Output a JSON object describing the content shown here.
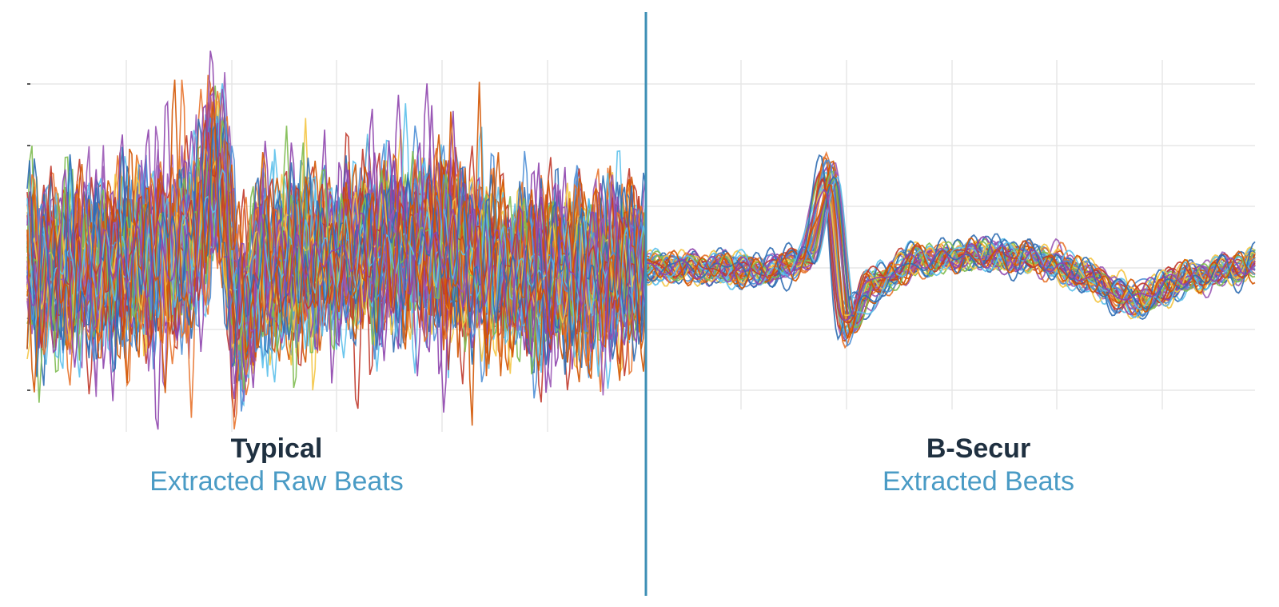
{
  "colors": {
    "divider": "#3d8fb5",
    "grid": "#e7e7e7",
    "title_text": "#1f3040",
    "subtitle_text": "#4a9bc5",
    "series_palette": [
      "#e8732c",
      "#4f8fd6",
      "#9b59b6",
      "#f4c542",
      "#7dbb4f",
      "#c0392b",
      "#5bc0eb",
      "#2f6db3",
      "#d35400",
      "#8e44ad"
    ]
  },
  "chart_data": [
    {
      "type": "line",
      "panel": "left",
      "title": "Typical",
      "subtitle": "Extracted Raw Beats",
      "grid": true,
      "xlim": [
        0,
        1
      ],
      "ylim": [
        -1.1,
        1.1
      ],
      "n_traces": 60,
      "template_beat": {
        "x": [
          0.0,
          0.1,
          0.2,
          0.26,
          0.31,
          0.34,
          0.38,
          0.45,
          0.55,
          0.65,
          0.72,
          0.8,
          0.9,
          1.0
        ],
        "y": [
          0.0,
          0.0,
          0.05,
          0.12,
          0.6,
          -0.3,
          0.0,
          0.05,
          0.1,
          0.15,
          0.05,
          -0.05,
          -0.02,
          0.0
        ]
      },
      "noise_level": "high"
    },
    {
      "type": "line",
      "panel": "right",
      "title": "B-Secur",
      "subtitle": "Extracted Beats",
      "grid": true,
      "xlim": [
        0,
        1
      ],
      "ylim": [
        -1.1,
        1.1
      ],
      "n_traces": 40,
      "template_beat": {
        "x": [
          0.0,
          0.1,
          0.2,
          0.26,
          0.3,
          0.33,
          0.37,
          0.45,
          0.55,
          0.65,
          0.72,
          0.8,
          0.9,
          1.0
        ],
        "y": [
          0.0,
          0.0,
          -0.02,
          0.05,
          0.55,
          -0.35,
          -0.1,
          0.05,
          0.08,
          0.05,
          -0.05,
          -0.2,
          -0.05,
          0.02
        ]
      },
      "noise_level": "low"
    }
  ]
}
